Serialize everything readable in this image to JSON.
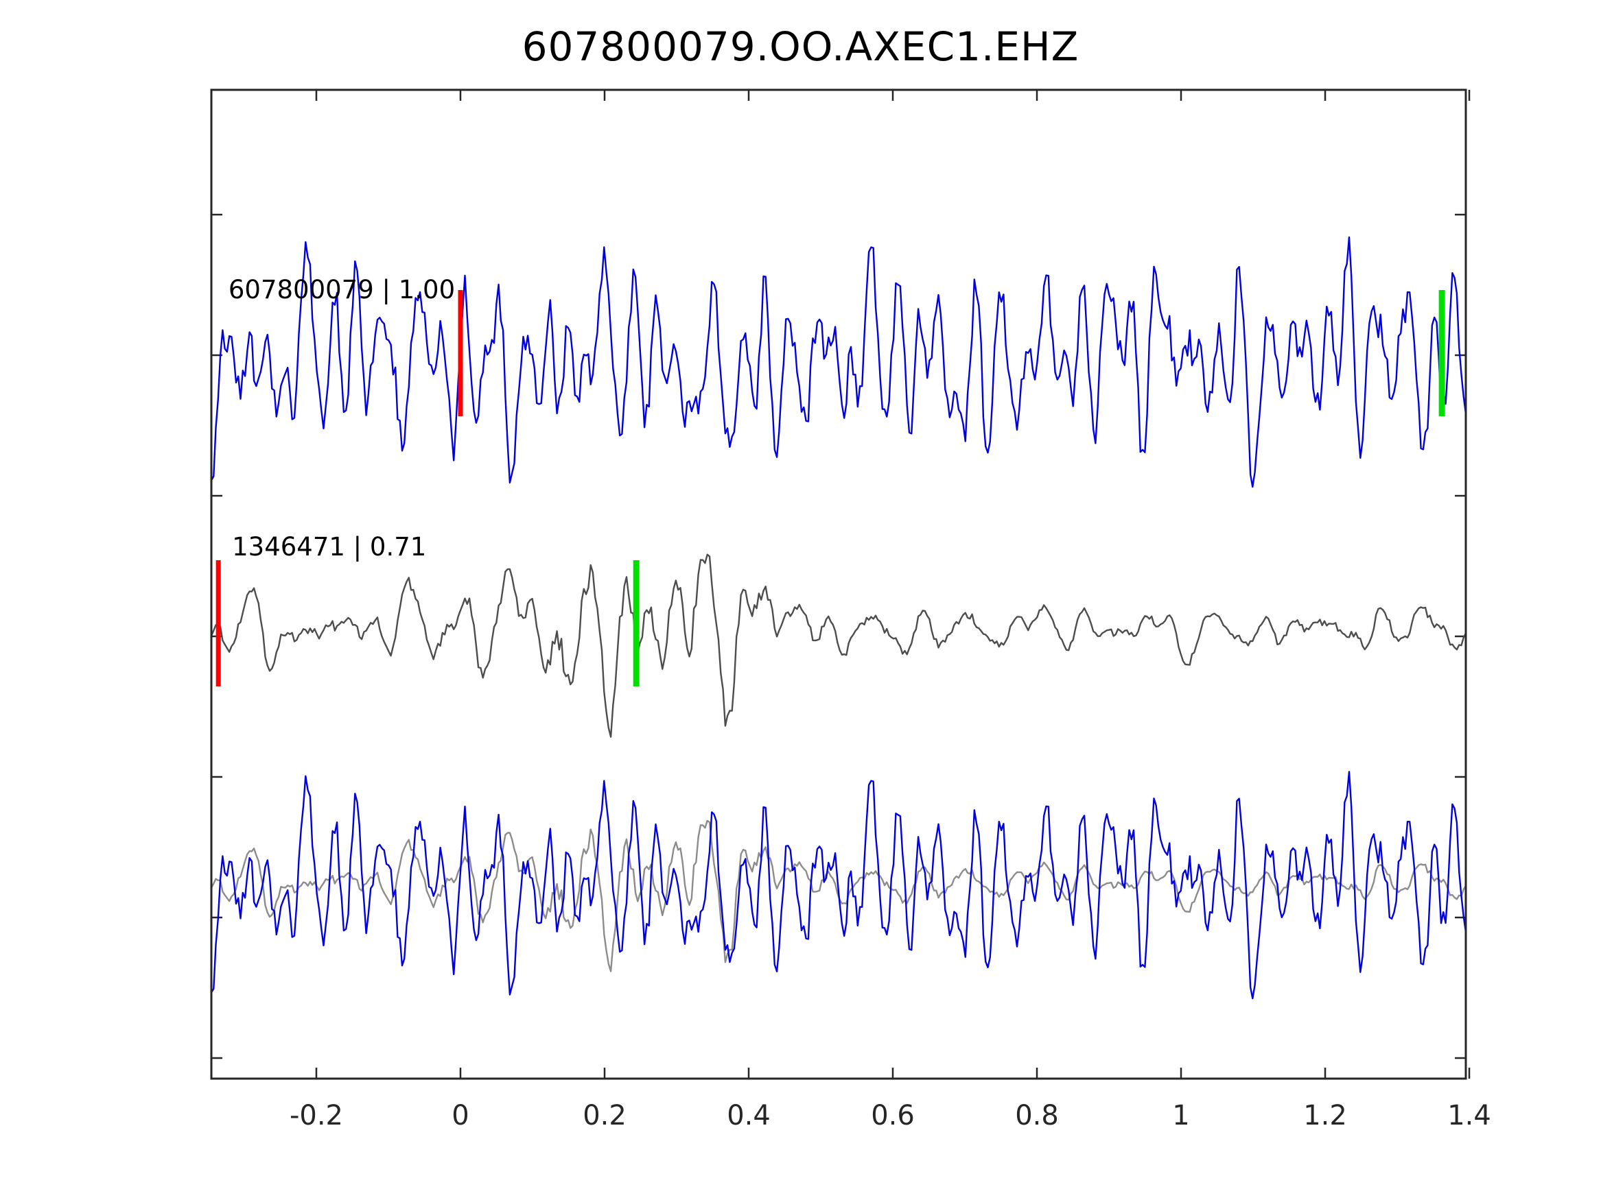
{
  "chart_data": {
    "type": "line",
    "title": "607800079.OO.AXEC1.EHZ",
    "xlabel": "",
    "ylabel": "",
    "grid": false,
    "legend": "none",
    "x_range": [
      -0.3457,
      1.3952
    ],
    "x_ticks": [
      -0.2,
      0,
      0.2,
      0.4,
      0.6,
      0.8,
      1,
      1.2,
      1.4
    ],
    "x_tick_labels": [
      "-0.2",
      "0",
      "0.2",
      "0.4",
      "0.6",
      "0.8",
      "1",
      "1.2",
      "1.4"
    ],
    "colors": {
      "detection": "#0000e0",
      "template": "#4d4d4d",
      "overlay_gray": "#8c8c8c",
      "red": "#ff0000",
      "green": "#00df00",
      "axis": "#262626",
      "text": "#000000"
    },
    "traces": [
      {
        "id": "overlay-template",
        "label": "",
        "color_key": "overlay_gray",
        "baseline": 1288,
        "amplitude": 190,
        "seed": 8841,
        "freqs": [
          4,
          14,
          22,
          30,
          41,
          55
        ],
        "amps": [
          0.4,
          0.7,
          1.0,
          0.9,
          0.7,
          0.4
        ],
        "noise": 0.18,
        "envelope": "burst",
        "label_x": 0,
        "label_y": 0
      },
      {
        "id": "overlay-detection",
        "label": "",
        "color_key": "detection",
        "baseline": 1288,
        "amplitude": 168,
        "seed": 20197,
        "freqs": [
          5,
          22,
          34,
          47,
          58,
          71
        ],
        "amps": [
          0.45,
          0.6,
          0.85,
          1.0,
          0.8,
          0.5
        ],
        "noise": 0.22,
        "envelope": "flat",
        "label_x": 0,
        "label_y": 0
      },
      {
        "id": "detection",
        "label": "607800079 | 1.00",
        "color_key": "detection",
        "baseline": 525,
        "amplitude": 185,
        "seed": 20197,
        "freqs": [
          5,
          22,
          34,
          47,
          58,
          71
        ],
        "amps": [
          0.45,
          0.6,
          0.85,
          1.0,
          0.8,
          0.5
        ],
        "noise": 0.22,
        "envelope": "flat",
        "label_x": -0.322,
        "label_y": 435
      },
      {
        "id": "template",
        "label": "1346471 | 0.71",
        "color_key": "template",
        "baseline": 919,
        "amplitude": 230,
        "seed": 8841,
        "freqs": [
          4,
          14,
          22,
          30,
          41,
          55
        ],
        "amps": [
          0.4,
          0.7,
          1.0,
          0.9,
          0.7,
          0.4
        ],
        "noise": 0.18,
        "envelope": "burst",
        "label_x": -0.317,
        "label_y": 810
      }
    ],
    "markers": [
      {
        "name": "detection-pick-red",
        "x": 0.0,
        "baseline": 525,
        "color_key": "red"
      },
      {
        "name": "detection-pick-green",
        "x": 1.362,
        "baseline": 525,
        "color_key": "green"
      },
      {
        "name": "template-pick-red",
        "x": -0.336,
        "baseline": 919,
        "color_key": "red"
      },
      {
        "name": "template-pick-green",
        "x": 0.244,
        "baseline": 919,
        "color_key": "green"
      }
    ]
  }
}
